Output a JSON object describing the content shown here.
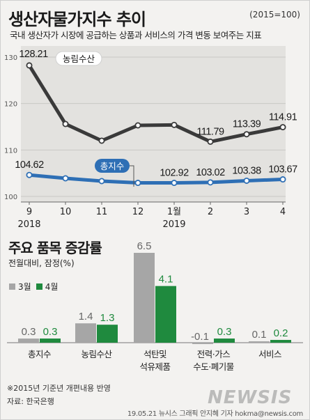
{
  "header": {
    "title": "생산자물가지수 추이",
    "base": "(2015=100)",
    "subtitle": "국내 생산자가 시장에 공급하는 상품과 서비스의 가격 변동 보여주는 지표"
  },
  "colors": {
    "agri": "#3a3a3a",
    "total": "#2e6fb5",
    "march": "#a6a6a6",
    "april": "#1f8a3e"
  },
  "line_chart": {
    "type": "line",
    "x": [
      "9",
      "10",
      "11",
      "12",
      "1월",
      "2",
      "3",
      "4"
    ],
    "year_labels": [
      "2018",
      "2019"
    ],
    "ylim": [
      100,
      130
    ],
    "yticks": [
      "130",
      "120",
      "110",
      "100"
    ],
    "series": [
      {
        "name": "농림수산",
        "values": [
          128.21,
          115.6,
          112.0,
          115.3,
          115.4,
          111.79,
          113.39,
          114.91
        ],
        "labels": [
          "128.21",
          "",
          "",
          "",
          "",
          "111.79",
          "113.39",
          "114.91"
        ]
      },
      {
        "name": "총지수",
        "values": [
          104.62,
          103.9,
          103.3,
          102.92,
          102.92,
          103.02,
          103.38,
          103.67
        ],
        "labels": [
          "104.62",
          "",
          "",
          "",
          "102.92",
          "103.02",
          "103.38",
          "103.67"
        ]
      }
    ]
  },
  "bar_chart": {
    "type": "bar",
    "title": "주요 품목 증감률",
    "subtitle": "전월대비, 잠정(%)",
    "categories": [
      [
        "총지수"
      ],
      [
        "농림수산"
      ],
      [
        "석탄및",
        "석유제품"
      ],
      [
        "전력·가스",
        "수도·폐기물"
      ],
      [
        "서비스"
      ]
    ],
    "series": [
      {
        "name": "3월",
        "values": [
          0.3,
          1.4,
          6.5,
          -0.1,
          0.1
        ],
        "labels": [
          "0.3",
          "1.4",
          "6.5",
          "-0.1",
          "0.1"
        ]
      },
      {
        "name": "4월",
        "values": [
          0.3,
          1.3,
          4.1,
          0.3,
          0.2
        ],
        "labels": [
          "0.3",
          "1.3",
          "4.1",
          "0.3",
          "0.2"
        ]
      }
    ]
  },
  "footer": {
    "note": "※2015년 기준년 개편내용 반영",
    "source": "자료: 한국은행",
    "credit": "19.05.21  뉴시스 그래픽 안지혜 기자  hokma@newsis.com",
    "watermark": "NEWSIS"
  }
}
